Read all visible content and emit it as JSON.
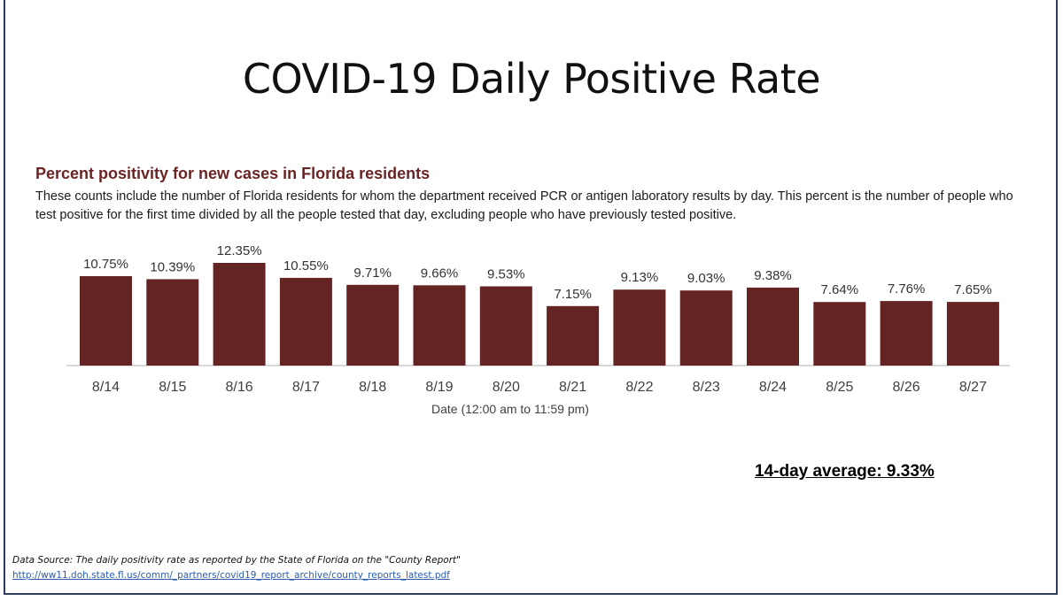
{
  "slide": {
    "title": "COVID-19 Daily Positive Rate",
    "average_text": "14-day average: 9.33%",
    "source_text": "Data Source: The daily positivity rate as reported by the State of Florida on the \"County Report\"",
    "source_link": "http://ww11.doh.state.fl.us/comm/_partners/covid19_report_archive/county_reports_latest.pdf"
  },
  "chart_data": {
    "type": "bar",
    "title": "Percent positivity for new cases in Florida residents",
    "subtitle": "These counts include the number of Florida residents for whom the department received PCR or antigen laboratory results by day. This percent is the number of people who test positive for the first time divided by all the people tested that day, excluding people who have previously tested positive.",
    "xlabel": "Date (12:00 am to 11:59 pm)",
    "ylabel": "",
    "categories": [
      "8/14",
      "8/15",
      "8/16",
      "8/17",
      "8/18",
      "8/19",
      "8/20",
      "8/21",
      "8/22",
      "8/23",
      "8/24",
      "8/25",
      "8/26",
      "8/27"
    ],
    "values": [
      10.75,
      10.39,
      12.35,
      10.55,
      9.71,
      9.66,
      9.53,
      7.15,
      9.13,
      9.03,
      9.38,
      7.64,
      7.76,
      7.65
    ],
    "data_labels": [
      "10.75%",
      "10.39%",
      "12.35%",
      "10.55%",
      "9.71%",
      "9.66%",
      "9.53%",
      "7.15%",
      "9.13%",
      "9.03%",
      "9.38%",
      "7.64%",
      "7.76%",
      "7.65%"
    ],
    "bar_color": "#652424",
    "ylim": [
      0,
      12.35
    ],
    "grid": false,
    "legend": "none"
  }
}
